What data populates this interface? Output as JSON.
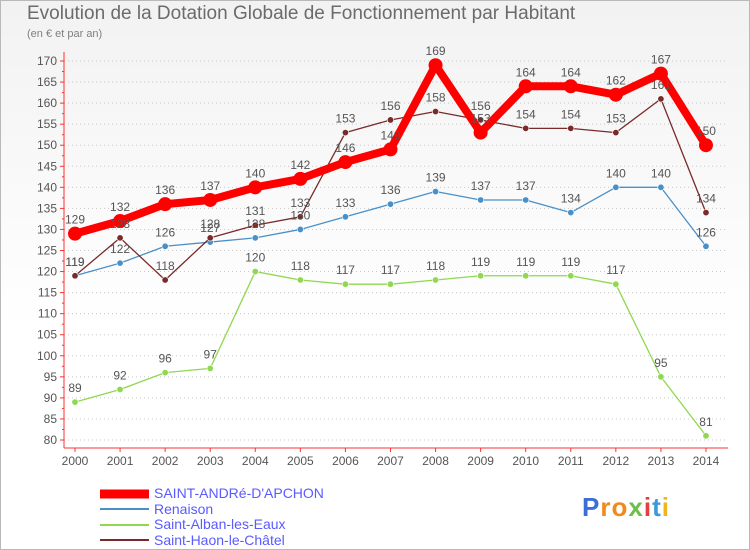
{
  "title": "Evolution de la Dotation Globale de Fonctionnement par Habitant",
  "subtitle": "(en € et par an)",
  "logo": "Proxiti",
  "chart_data": {
    "type": "line",
    "title": "Evolution de la Dotation Globale de Fonctionnement par Habitant",
    "subtitle": "(en € et par an)",
    "xlabel": "",
    "ylabel": "",
    "categories": [
      "2000",
      "2001",
      "2002",
      "2003",
      "2004",
      "2005",
      "2006",
      "2007",
      "2008",
      "2009",
      "2010",
      "2011",
      "2012",
      "2013",
      "2014"
    ],
    "ylim": [
      80,
      170
    ],
    "yticks": [
      80,
      85,
      90,
      95,
      100,
      105,
      110,
      115,
      120,
      125,
      130,
      135,
      140,
      145,
      150,
      155,
      160,
      165,
      170
    ],
    "grid": "horizontal dotted",
    "legend_position": "bottom-left",
    "series": [
      {
        "name": "SAINT-ANDRé-D'APCHON",
        "color": "#ff0000",
        "values": [
          129,
          132,
          136,
          137,
          140,
          142,
          146,
          149,
          169,
          153,
          164,
          164,
          162,
          167,
          150
        ],
        "labels": [
          "129",
          "132",
          "136",
          "137",
          "140",
          "142",
          "146",
          "149",
          "169",
          "153",
          "164",
          "164",
          "162",
          "167",
          "150"
        ]
      },
      {
        "name": "Renaison",
        "color": "#4a90c8",
        "values": [
          119,
          122,
          126,
          127,
          128,
          130,
          133,
          136,
          139,
          137,
          137,
          134,
          140,
          140,
          126
        ],
        "labels": [
          "119",
          "122",
          "126",
          "127",
          "128",
          "130",
          "133",
          "136",
          "139",
          "137",
          "137",
          "134",
          "140",
          "140",
          "126"
        ]
      },
      {
        "name": "Saint-Alban-les-Eaux",
        "color": "#8fd84f",
        "values": [
          89,
          92,
          96,
          97,
          120,
          118,
          117,
          117,
          118,
          119,
          119,
          119,
          117,
          95,
          81
        ],
        "labels": [
          "89",
          "92",
          "96",
          "97",
          "120",
          "118",
          "117",
          "117",
          "118",
          "119",
          "119",
          "119",
          "117",
          "95",
          "81"
        ]
      },
      {
        "name": "Saint-Haon-le-Châtel",
        "color": "#7a2a2a",
        "values": [
          119,
          128,
          118,
          128,
          131,
          133,
          153,
          156,
          158,
          156,
          154,
          154,
          153,
          161,
          134
        ],
        "labels": [
          "119",
          "128",
          "118",
          "128",
          "131",
          "133",
          "153",
          "156",
          "158",
          "156",
          "154",
          "154",
          "153",
          "161",
          "134"
        ]
      }
    ]
  }
}
